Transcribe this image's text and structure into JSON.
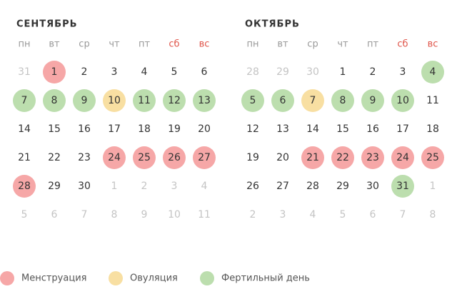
{
  "weekday_colors": [
    "#9a9a9a",
    "#9a9a9a",
    "#9a9a9a",
    "#9a9a9a",
    "#9a9a9a",
    "#e0554a",
    "#e0554a"
  ],
  "text_color": "#333333",
  "muted_color": "#c4c4c4",
  "months": [
    {
      "title": "СЕНТЯБРЬ",
      "weekdays": [
        "пн",
        "вт",
        "ср",
        "чт",
        "пт",
        "сб",
        "вс"
      ],
      "weeks": [
        [
          {
            "day": 31,
            "muted": true
          },
          {
            "day": 1,
            "fill": "#f6a7a7"
          },
          {
            "day": 2
          },
          {
            "day": 3
          },
          {
            "day": 4
          },
          {
            "day": 5
          },
          {
            "day": 6
          }
        ],
        [
          {
            "day": 7,
            "fill": "#bcdeae"
          },
          {
            "day": 8,
            "fill": "#bcdeae"
          },
          {
            "day": 9,
            "fill": "#bcdeae"
          },
          {
            "day": 10,
            "fill": "#f8dfa2"
          },
          {
            "day": 11,
            "fill": "#bcdeae"
          },
          {
            "day": 12,
            "fill": "#bcdeae"
          },
          {
            "day": 13,
            "fill": "#bcdeae"
          }
        ],
        [
          {
            "day": 14
          },
          {
            "day": 15
          },
          {
            "day": 16
          },
          {
            "day": 17
          },
          {
            "day": 18
          },
          {
            "day": 19
          },
          {
            "day": 20
          }
        ],
        [
          {
            "day": 21
          },
          {
            "day": 22
          },
          {
            "day": 23
          },
          {
            "day": 24,
            "fill": "#f6a7a7"
          },
          {
            "day": 25,
            "fill": "#f6a7a7"
          },
          {
            "day": 26,
            "fill": "#f6a7a7"
          },
          {
            "day": 27,
            "fill": "#f6a7a7"
          }
        ],
        [
          {
            "day": 28,
            "fill": "#f6a7a7"
          },
          {
            "day": 29
          },
          {
            "day": 30
          },
          {
            "day": 1,
            "muted": true
          },
          {
            "day": 2,
            "muted": true
          },
          {
            "day": 3,
            "muted": true
          },
          {
            "day": 4,
            "muted": true
          }
        ],
        [
          {
            "day": 5,
            "muted": true
          },
          {
            "day": 6,
            "muted": true
          },
          {
            "day": 7,
            "muted": true
          },
          {
            "day": 8,
            "muted": true
          },
          {
            "day": 9,
            "muted": true
          },
          {
            "day": 10,
            "muted": true
          },
          {
            "day": 11,
            "muted": true
          }
        ]
      ]
    },
    {
      "title": "ОКТЯБРЬ",
      "weekdays": [
        "пн",
        "вт",
        "ср",
        "чт",
        "пт",
        "сб",
        "вс"
      ],
      "weeks": [
        [
          {
            "day": 28,
            "muted": true
          },
          {
            "day": 29,
            "muted": true
          },
          {
            "day": 30,
            "muted": true
          },
          {
            "day": 1
          },
          {
            "day": 2
          },
          {
            "day": 3
          },
          {
            "day": 4,
            "fill": "#bcdeae"
          }
        ],
        [
          {
            "day": 5,
            "fill": "#bcdeae"
          },
          {
            "day": 6,
            "fill": "#bcdeae"
          },
          {
            "day": 7,
            "fill": "#f8dfa2"
          },
          {
            "day": 8,
            "fill": "#bcdeae"
          },
          {
            "day": 9,
            "fill": "#bcdeae"
          },
          {
            "day": 10,
            "fill": "#bcdeae"
          },
          {
            "day": 11
          }
        ],
        [
          {
            "day": 12
          },
          {
            "day": 13
          },
          {
            "day": 14
          },
          {
            "day": 15
          },
          {
            "day": 16
          },
          {
            "day": 17
          },
          {
            "day": 18
          }
        ],
        [
          {
            "day": 19
          },
          {
            "day": 20
          },
          {
            "day": 21,
            "fill": "#f6a7a7"
          },
          {
            "day": 22,
            "fill": "#f6a7a7"
          },
          {
            "day": 23,
            "fill": "#f6a7a7"
          },
          {
            "day": 24,
            "fill": "#f6a7a7"
          },
          {
            "day": 25,
            "fill": "#f6a7a7"
          }
        ],
        [
          {
            "day": 26
          },
          {
            "day": 27
          },
          {
            "day": 28
          },
          {
            "day": 29
          },
          {
            "day": 30
          },
          {
            "day": 31,
            "fill": "#bcdeae"
          },
          {
            "day": 1,
            "muted": true
          }
        ],
        [
          {
            "day": 2,
            "muted": true
          },
          {
            "day": 3,
            "muted": true
          },
          {
            "day": 4,
            "muted": true
          },
          {
            "day": 5,
            "muted": true
          },
          {
            "day": 6,
            "muted": true
          },
          {
            "day": 7,
            "muted": true
          },
          {
            "day": 8,
            "muted": true
          }
        ]
      ]
    }
  ],
  "legend": [
    {
      "label": "Менструация",
      "color": "#f6a7a7"
    },
    {
      "label": "Овуляция",
      "color": "#f8dfa2"
    },
    {
      "label": "Фертильный день",
      "color": "#bcdeae"
    }
  ]
}
